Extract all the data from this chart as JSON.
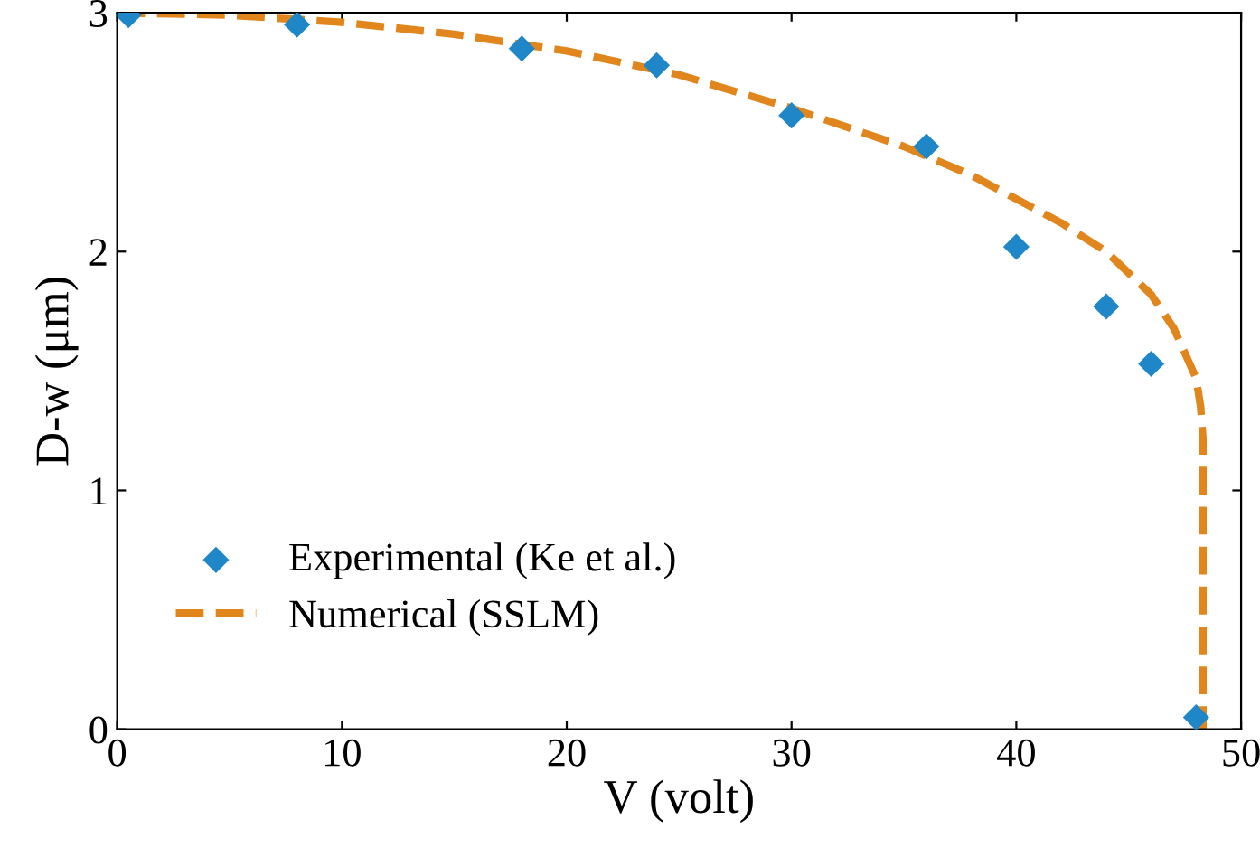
{
  "chart_data": {
    "type": "scatter",
    "xlabel": "V (volt)",
    "ylabel": "D-w (μm)",
    "xlim": [
      0,
      50
    ],
    "ylim": [
      0,
      3
    ],
    "xticks": [
      0,
      10,
      20,
      30,
      40,
      50
    ],
    "yticks": [
      0,
      1,
      2,
      3
    ],
    "grid": false,
    "legend": "bottom left",
    "series": [
      {
        "name": "Experimental (Ke et al.)",
        "marker": "diamond",
        "color": "#1f87c8",
        "x": [
          0.5,
          8,
          18,
          24,
          30,
          36,
          40,
          44,
          46,
          48
        ],
        "values": [
          2.99,
          2.95,
          2.85,
          2.78,
          2.57,
          2.44,
          2.02,
          1.77,
          1.53,
          0.05
        ]
      },
      {
        "name": "Numerical (SSLM)",
        "type": "line",
        "line_style": "dashed",
        "color": "#e0861c",
        "x": [
          0,
          5,
          10,
          15,
          20,
          25,
          30,
          35,
          38,
          40,
          42,
          44,
          46,
          47,
          48,
          48.2,
          48.3,
          48.3
        ],
        "values": [
          3.0,
          2.99,
          2.96,
          2.91,
          2.84,
          2.74,
          2.6,
          2.44,
          2.32,
          2.22,
          2.12,
          2.0,
          1.82,
          1.68,
          1.47,
          1.35,
          1.22,
          0
        ]
      }
    ]
  }
}
